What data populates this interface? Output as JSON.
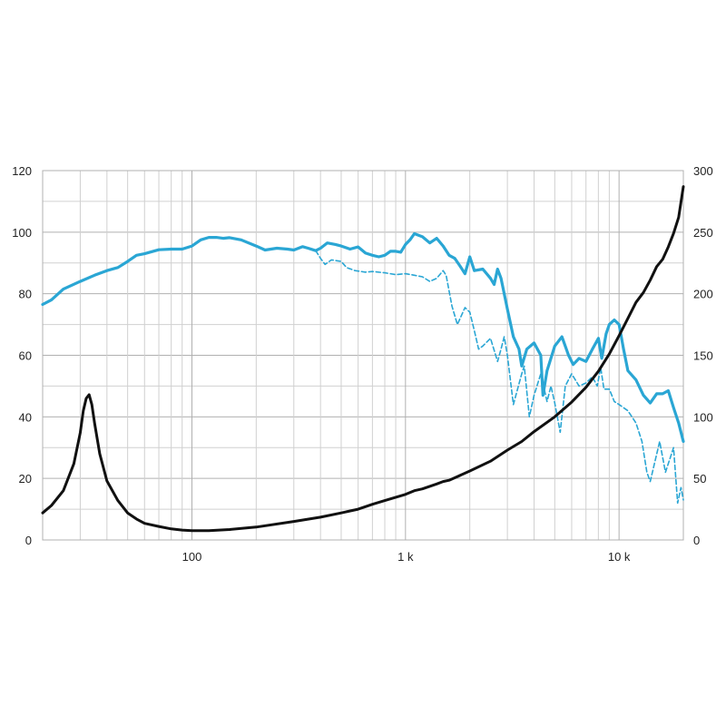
{
  "chart_data": {
    "type": "line",
    "x_scale": "log",
    "grid": true,
    "xlim": [
      20,
      20000
    ],
    "ylim": [
      0,
      120
    ],
    "y2lim": [
      0,
      300
    ],
    "x_ticks": [
      {
        "value": 100,
        "label": "100"
      },
      {
        "value": 1000,
        "label": "1 k"
      },
      {
        "value": 10000,
        "label": "10 k"
      }
    ],
    "y_ticks": [
      0,
      20,
      40,
      60,
      80,
      100,
      120
    ],
    "y2_ticks": [
      0,
      50,
      100,
      150,
      200,
      250,
      300
    ],
    "colors": {
      "spl_on_axis": "#2aa6d4",
      "spl_off_axis": "#2aa6d4",
      "impedance": "#111111"
    },
    "series": [
      {
        "id": "spl_on_axis",
        "axis": "left",
        "style": "solid",
        "points": [
          [
            20,
            76.5
          ],
          [
            22,
            78
          ],
          [
            25,
            81.5
          ],
          [
            30,
            84
          ],
          [
            35,
            86
          ],
          [
            40,
            87.5
          ],
          [
            45,
            88.5
          ],
          [
            50,
            90.5
          ],
          [
            55,
            92.5
          ],
          [
            60,
            93
          ],
          [
            70,
            94.3
          ],
          [
            80,
            94.5
          ],
          [
            90,
            94.5
          ],
          [
            100,
            95.5
          ],
          [
            110,
            97.5
          ],
          [
            120,
            98.3
          ],
          [
            130,
            98.3
          ],
          [
            140,
            98
          ],
          [
            150,
            98.2
          ],
          [
            170,
            97.5
          ],
          [
            200,
            95.5
          ],
          [
            220,
            94.2
          ],
          [
            250,
            94.8
          ],
          [
            280,
            94.5
          ],
          [
            300,
            94.2
          ],
          [
            330,
            95.3
          ],
          [
            350,
            94.8
          ],
          [
            380,
            94
          ],
          [
            400,
            94.8
          ],
          [
            430,
            96.5
          ],
          [
            470,
            96
          ],
          [
            500,
            95.5
          ],
          [
            550,
            94.5
          ],
          [
            600,
            95.2
          ],
          [
            650,
            93.2
          ],
          [
            700,
            92.5
          ],
          [
            750,
            92
          ],
          [
            800,
            92.5
          ],
          [
            850,
            93.8
          ],
          [
            900,
            93.8
          ],
          [
            950,
            93.5
          ],
          [
            1000,
            96
          ],
          [
            1050,
            97.5
          ],
          [
            1100,
            99.5
          ],
          [
            1200,
            98.5
          ],
          [
            1300,
            96.5
          ],
          [
            1400,
            98
          ],
          [
            1500,
            95.5
          ],
          [
            1600,
            92.5
          ],
          [
            1700,
            91.5
          ],
          [
            1800,
            89
          ],
          [
            1900,
            86.5
          ],
          [
            2000,
            92
          ],
          [
            2100,
            87.5
          ],
          [
            2300,
            88
          ],
          [
            2500,
            85
          ],
          [
            2600,
            83
          ],
          [
            2700,
            88
          ],
          [
            2800,
            85
          ],
          [
            3000,
            75
          ],
          [
            3200,
            66
          ],
          [
            3400,
            62
          ],
          [
            3500,
            56.5
          ],
          [
            3700,
            62
          ],
          [
            4000,
            64
          ],
          [
            4300,
            60
          ],
          [
            4400,
            47
          ],
          [
            4600,
            55
          ],
          [
            5000,
            63
          ],
          [
            5400,
            66
          ],
          [
            5800,
            60
          ],
          [
            6100,
            57
          ],
          [
            6500,
            59
          ],
          [
            7000,
            58
          ],
          [
            7500,
            62
          ],
          [
            8000,
            65.5
          ],
          [
            8300,
            59
          ],
          [
            8700,
            67
          ],
          [
            9000,
            70
          ],
          [
            9500,
            71.5
          ],
          [
            10000,
            70
          ],
          [
            10500,
            62
          ],
          [
            11000,
            55
          ],
          [
            12000,
            52
          ],
          [
            13000,
            47
          ],
          [
            14000,
            44.5
          ],
          [
            15000,
            47.5
          ],
          [
            16000,
            47.5
          ],
          [
            17000,
            48.5
          ],
          [
            18000,
            43
          ],
          [
            19000,
            38
          ],
          [
            20000,
            32
          ]
        ]
      },
      {
        "id": "spl_off_axis",
        "axis": "left",
        "style": "dashed",
        "points": [
          [
            380,
            94
          ],
          [
            400,
            91.5
          ],
          [
            420,
            89.5
          ],
          [
            450,
            91
          ],
          [
            500,
            90.5
          ],
          [
            530,
            88.5
          ],
          [
            580,
            87.5
          ],
          [
            650,
            87
          ],
          [
            700,
            87.2
          ],
          [
            800,
            86.8
          ],
          [
            900,
            86.2
          ],
          [
            1000,
            86.5
          ],
          [
            1100,
            86
          ],
          [
            1200,
            85.5
          ],
          [
            1300,
            84
          ],
          [
            1400,
            85
          ],
          [
            1500,
            87.5
          ],
          [
            1550,
            86
          ],
          [
            1650,
            76
          ],
          [
            1750,
            70
          ],
          [
            1900,
            75.5
          ],
          [
            2000,
            74
          ],
          [
            2100,
            68
          ],
          [
            2200,
            62
          ],
          [
            2300,
            63
          ],
          [
            2500,
            65.5
          ],
          [
            2700,
            58
          ],
          [
            2800,
            62
          ],
          [
            2900,
            66
          ],
          [
            3000,
            60
          ],
          [
            3200,
            44
          ],
          [
            3500,
            54
          ],
          [
            3600,
            56.5
          ],
          [
            3800,
            40
          ],
          [
            4000,
            47
          ],
          [
            4300,
            54
          ],
          [
            4600,
            45
          ],
          [
            4800,
            50
          ],
          [
            5000,
            44.5
          ],
          [
            5300,
            35
          ],
          [
            5600,
            50
          ],
          [
            6000,
            54
          ],
          [
            6500,
            50
          ],
          [
            7000,
            51
          ],
          [
            7500,
            53
          ],
          [
            7900,
            50
          ],
          [
            8200,
            56
          ],
          [
            8500,
            49
          ],
          [
            9000,
            49
          ],
          [
            9500,
            45
          ],
          [
            10000,
            44
          ],
          [
            11000,
            42
          ],
          [
            12000,
            38
          ],
          [
            12800,
            32
          ],
          [
            13500,
            22
          ],
          [
            14000,
            19
          ],
          [
            15500,
            32
          ],
          [
            16500,
            22
          ],
          [
            18000,
            30
          ],
          [
            18800,
            12
          ],
          [
            19500,
            17
          ],
          [
            20000,
            13
          ]
        ]
      },
      {
        "id": "impedance",
        "axis": "right",
        "style": "solid",
        "points": [
          [
            20,
            22
          ],
          [
            22,
            28
          ],
          [
            25,
            40
          ],
          [
            28,
            62
          ],
          [
            30,
            87
          ],
          [
            31,
            105
          ],
          [
            32,
            115
          ],
          [
            33,
            118
          ],
          [
            34,
            110
          ],
          [
            35,
            95
          ],
          [
            37,
            70
          ],
          [
            40,
            48
          ],
          [
            45,
            32
          ],
          [
            50,
            22
          ],
          [
            55,
            17
          ],
          [
            60,
            13.5
          ],
          [
            70,
            11
          ],
          [
            80,
            9
          ],
          [
            90,
            8
          ],
          [
            100,
            7.5
          ],
          [
            120,
            7.5
          ],
          [
            150,
            8.5
          ],
          [
            200,
            10.5
          ],
          [
            300,
            15
          ],
          [
            400,
            18.5
          ],
          [
            500,
            22
          ],
          [
            600,
            25
          ],
          [
            700,
            29
          ],
          [
            800,
            32
          ],
          [
            1000,
            37
          ],
          [
            1100,
            40
          ],
          [
            1200,
            41.5
          ],
          [
            1400,
            45.5
          ],
          [
            1500,
            47.5
          ],
          [
            1600,
            48.5
          ],
          [
            1700,
            50.5
          ],
          [
            2000,
            56
          ],
          [
            2500,
            64
          ],
          [
            3000,
            73
          ],
          [
            3500,
            80
          ],
          [
            4000,
            88
          ],
          [
            5000,
            100
          ],
          [
            6000,
            112
          ],
          [
            7000,
            124
          ],
          [
            8000,
            137
          ],
          [
            9000,
            151
          ],
          [
            10000,
            166
          ],
          [
            11000,
            180
          ],
          [
            12000,
            193
          ],
          [
            13000,
            201
          ],
          [
            14000,
            211
          ],
          [
            15000,
            222
          ],
          [
            16000,
            228
          ],
          [
            17000,
            238
          ],
          [
            18000,
            249
          ],
          [
            19000,
            262
          ],
          [
            20000,
            287
          ]
        ]
      }
    ]
  }
}
